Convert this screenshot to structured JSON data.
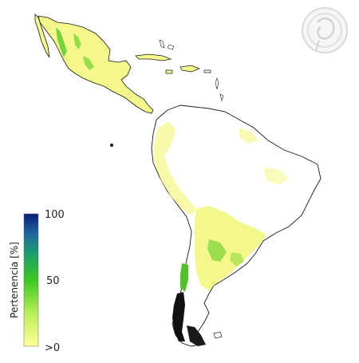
{
  "legend": {
    "title": "Pertenencia [%]",
    "ticks": [
      {
        "label": "100",
        "value": 100
      },
      {
        "label": "50",
        "value": 50
      },
      {
        "label": ">0",
        "value": 0
      }
    ],
    "colors": [
      "#ffff99",
      "#b8ee55",
      "#3cc820",
      "#1a9e6e",
      "#2066a0",
      "#0a1f78"
    ]
  },
  "map": {
    "land_fill": "#ffffff",
    "coast_stroke": "#1a1a1a",
    "suitability_low": "#f4f88a",
    "suitability_mid": "#7fd63a",
    "suitability_high": "#111111"
  },
  "logo": {
    "icon": "institution-seal-icon"
  }
}
